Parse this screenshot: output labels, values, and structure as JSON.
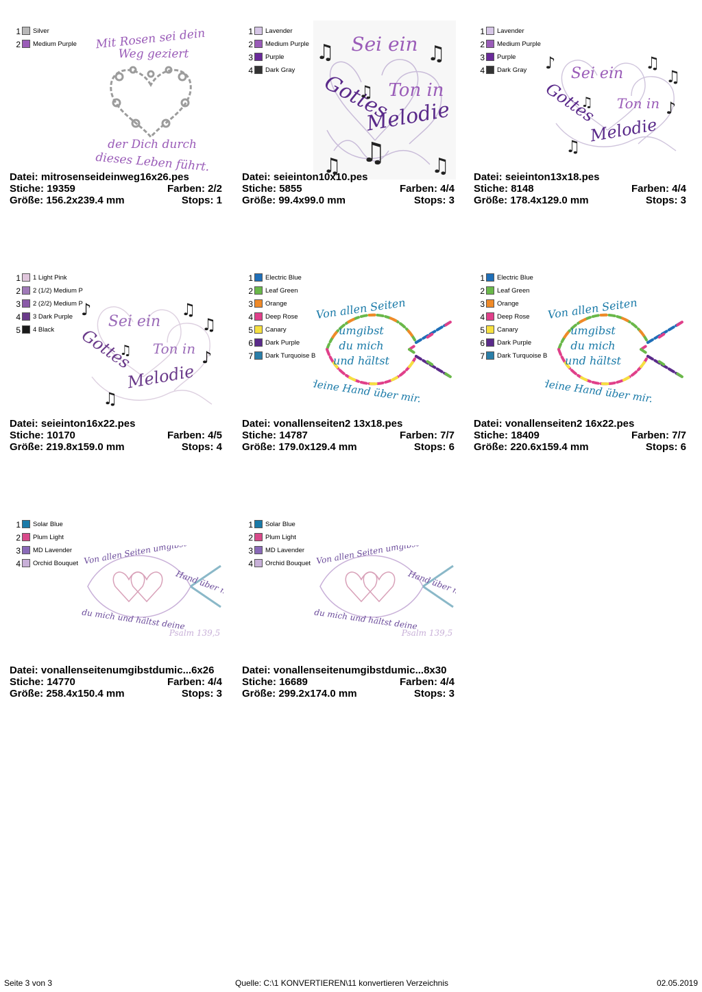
{
  "labels": {
    "file": "Datei:",
    "stitches": "Stiche:",
    "colors": "Farben:",
    "size": "Größe:",
    "stops": "Stops:"
  },
  "cards": [
    {
      "file": "mitrosenseideinweg16x26.pes",
      "stitches": "19359",
      "colors": "2/2",
      "size": "156.2x239.4 mm",
      "stops": "1",
      "palette": [
        {
          "idx": "1",
          "name": "Silver",
          "hex": "#b8b8b8"
        },
        {
          "idx": "2",
          "name": "Medium Purple",
          "hex": "#9a5cb8"
        }
      ],
      "text": {
        "line1": "Mit Rosen sei dein",
        "line2": "Weg geziert",
        "line3": "der Dich durch",
        "line4": "dieses Leben führt."
      }
    },
    {
      "file": "seieinton10x10.pes",
      "stitches": "5855",
      "colors": "4/4",
      "size": "99.4x99.0 mm",
      "stops": "3",
      "palette": [
        {
          "idx": "1",
          "name": "Lavender",
          "hex": "#d6c6e6"
        },
        {
          "idx": "2",
          "name": "Medium Purple",
          "hex": "#9a5cb8"
        },
        {
          "idx": "3",
          "name": "Purple",
          "hex": "#6a2a9a"
        },
        {
          "idx": "4",
          "name": "Dark Gray",
          "hex": "#333333"
        }
      ],
      "text": {
        "line1": "Sei ein",
        "line2": "Ton in",
        "line3": "Gottes",
        "line4": "Melodie"
      }
    },
    {
      "file": "seieinton13x18.pes",
      "stitches": "8148",
      "colors": "4/4",
      "size": "178.4x129.0 mm",
      "stops": "3",
      "palette": [
        {
          "idx": "1",
          "name": "Lavender",
          "hex": "#d6c6e6"
        },
        {
          "idx": "2",
          "name": "Medium Purple",
          "hex": "#9a5cb8"
        },
        {
          "idx": "3",
          "name": "Purple",
          "hex": "#6a2a9a"
        },
        {
          "idx": "4",
          "name": "Dark Gray",
          "hex": "#333333"
        }
      ],
      "text": {
        "line1": "Sei ein",
        "line2": "Ton in",
        "line3": "Gottes",
        "line4": "Melodie"
      }
    },
    {
      "file": "seieinton16x22.pes",
      "stitches": "10170",
      "colors": "4/5",
      "size": "219.8x159.0 mm",
      "stops": "4",
      "palette": [
        {
          "idx": "1",
          "name": "1 Light Pink",
          "hex": "#e0c6dc"
        },
        {
          "idx": "2",
          "name": "2 (1/2) Medium P",
          "hex": "#a07ab8"
        },
        {
          "idx": "3",
          "name": "2 (2/2) Medium P",
          "hex": "#8a5aa8"
        },
        {
          "idx": "4",
          "name": "3 Dark Purple",
          "hex": "#6a3a8a"
        },
        {
          "idx": "5",
          "name": "4 Black",
          "hex": "#1a1a1a"
        }
      ],
      "text": {
        "line1": "Sei ein",
        "line2": "Ton in",
        "line3": "Gottes",
        "line4": "Melodie"
      }
    },
    {
      "file": "vonallenseiten2 13x18.pes",
      "stitches": "14787",
      "colors": "7/7",
      "size": "179.0x129.4 mm",
      "stops": "6",
      "palette": [
        {
          "idx": "1",
          "name": "Electric Blue",
          "hex": "#1f6fb8"
        },
        {
          "idx": "2",
          "name": "Leaf Green",
          "hex": "#6ab84a"
        },
        {
          "idx": "3",
          "name": "Orange",
          "hex": "#f08a28"
        },
        {
          "idx": "4",
          "name": "Deep Rose",
          "hex": "#e0408a"
        },
        {
          "idx": "5",
          "name": "Canary",
          "hex": "#f6e040"
        },
        {
          "idx": "6",
          "name": "Dark Purple",
          "hex": "#5a2a8a"
        },
        {
          "idx": "7",
          "name": "Dark Turquoise B",
          "hex": "#2a7ea8"
        }
      ],
      "text": {
        "line1": "Von allen Seiten",
        "line2": "umgibst",
        "line3": "du mich",
        "line4": "und hältst",
        "line5": "deine Hand über mir."
      }
    },
    {
      "file": "vonallenseiten2 16x22.pes",
      "stitches": "18409",
      "colors": "7/7",
      "size": "220.6x159.4 mm",
      "stops": "6",
      "palette": [
        {
          "idx": "1",
          "name": "Electric Blue",
          "hex": "#1f6fb8"
        },
        {
          "idx": "2",
          "name": "Leaf Green",
          "hex": "#6ab84a"
        },
        {
          "idx": "3",
          "name": "Orange",
          "hex": "#f08a28"
        },
        {
          "idx": "4",
          "name": "Deep Rose",
          "hex": "#e0408a"
        },
        {
          "idx": "5",
          "name": "Canary",
          "hex": "#f6e040"
        },
        {
          "idx": "6",
          "name": "Dark Purple",
          "hex": "#5a2a8a"
        },
        {
          "idx": "7",
          "name": "Dark Turquoise B",
          "hex": "#2a7ea8"
        }
      ],
      "text": {
        "line1": "Von allen Seiten",
        "line2": "umgibst",
        "line3": "du mich",
        "line4": "und hältst",
        "line5": "deine Hand über mir."
      }
    },
    {
      "file": "vonallenseitenumgibstdumic...6x26",
      "stitches": "14770",
      "colors": "4/4",
      "size": "258.4x150.4 mm",
      "stops": "3",
      "palette": [
        {
          "idx": "1",
          "name": "Solar Blue",
          "hex": "#1a7aa8"
        },
        {
          "idx": "2",
          "name": "Plum Light",
          "hex": "#d84a8a"
        },
        {
          "idx": "3",
          "name": "MD Lavender",
          "hex": "#8a6ab8"
        },
        {
          "idx": "4",
          "name": "Orchid Bouquet",
          "hex": "#c8b0d8"
        }
      ],
      "text": {
        "line1": "Von allen Seiten umgibst",
        "line2": "du mich und hältst deine",
        "line3": "Hand über mir",
        "line4": "Psalm 139,5"
      }
    },
    {
      "file": "vonallenseitenumgibstdumic...8x30",
      "stitches": "16689",
      "colors": "4/4",
      "size": "299.2x174.0 mm",
      "stops": "3",
      "palette": [
        {
          "idx": "1",
          "name": "Solar Blue",
          "hex": "#1a7aa8"
        },
        {
          "idx": "2",
          "name": "Plum Light",
          "hex": "#d84a8a"
        },
        {
          "idx": "3",
          "name": "MD Lavender",
          "hex": "#8a6ab8"
        },
        {
          "idx": "4",
          "name": "Orchid Bouquet",
          "hex": "#c8b0d8"
        }
      ],
      "text": {
        "line1": "Von allen Seiten umgibst",
        "line2": "du mich und hältst deine",
        "line3": "Hand über mir",
        "line4": "Psalm 139,5"
      }
    }
  ],
  "footer": {
    "page": "Seite 3 von 3",
    "source": "Quelle: C:\\1 KONVERTIEREN\\11 konvertieren Verzeichnis",
    "date": "02.05.2019"
  }
}
